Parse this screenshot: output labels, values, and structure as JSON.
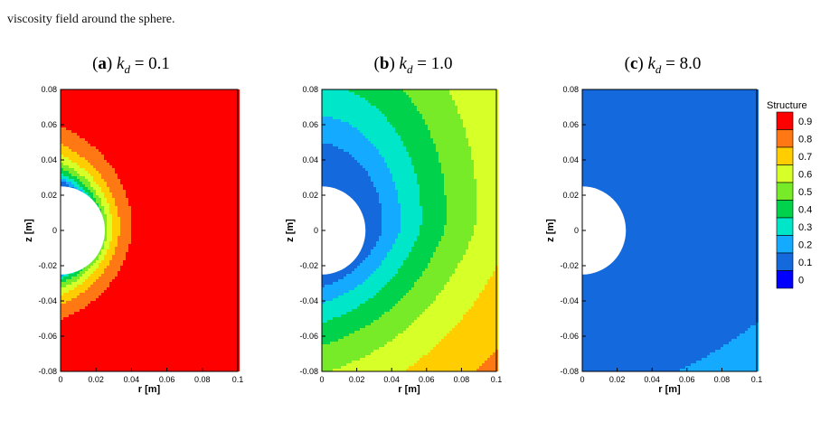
{
  "caption": {
    "line2": "viscosity field around the sphere."
  },
  "panels": [
    {
      "label": "a",
      "equation": "k_d = 0.1",
      "param_symbol": "k",
      "param_sub": "d",
      "param_value": "0.1"
    },
    {
      "label": "b",
      "equation": "k_d = 1.0",
      "param_symbol": "k",
      "param_sub": "d",
      "param_value": "1.0"
    },
    {
      "label": "c",
      "equation": "k_d = 8.0",
      "param_symbol": "k",
      "param_sub": "d",
      "param_value": "8.0"
    }
  ],
  "colors": {
    "levels": [
      "#0000ff",
      "#1469dc",
      "#14aaff",
      "#00e6c8",
      "#00d24b",
      "#78eb28",
      "#d7ff28",
      "#ffcd00",
      "#ff7814",
      "#ff0000"
    ]
  },
  "chart_data": [
    {
      "type": "heatmap",
      "title": "(a) k_d = 0.1",
      "xlabel": "r [m]",
      "ylabel": "z [m]",
      "xlim": [
        0,
        0.1
      ],
      "ylim": [
        -0.08,
        0.08
      ],
      "x_ticks": [
        "0",
        "0.02",
        "0.04",
        "0.06",
        "0.08",
        "0.1"
      ],
      "y_ticks": [
        "0.08",
        "0.06",
        "0.04",
        "0.02",
        "0",
        "-0.02",
        "-0.04",
        "-0.06",
        "-0.08"
      ],
      "sphere_radius": 0.025,
      "field_params": {
        "k": 0.1
      }
    },
    {
      "type": "heatmap",
      "title": "(b) k_d = 1.0",
      "xlabel": "r [m]",
      "ylabel": "z [m]",
      "xlim": [
        0,
        0.1
      ],
      "ylim": [
        -0.08,
        0.08
      ],
      "x_ticks": [
        "0",
        "0.02",
        "0.04",
        "0.06",
        "0.08",
        "0.1"
      ],
      "y_ticks": [
        "0.08",
        "0.06",
        "0.04",
        "0.02",
        "0",
        "-0.02",
        "-0.04",
        "-0.06",
        "-0.08"
      ],
      "sphere_radius": 0.025,
      "field_params": {
        "k": 1.0
      }
    },
    {
      "type": "heatmap",
      "title": "(c) k_d = 8.0",
      "xlabel": "r [m]",
      "ylabel": "z [m]",
      "xlim": [
        0,
        0.1
      ],
      "ylim": [
        -0.08,
        0.08
      ],
      "x_ticks": [
        "0",
        "0.02",
        "0.04",
        "0.06",
        "0.08",
        "0.1"
      ],
      "y_ticks": [
        "0.08",
        "0.06",
        "0.04",
        "0.02",
        "0",
        "-0.02",
        "-0.04",
        "-0.06",
        "-0.08"
      ],
      "sphere_radius": 0.025,
      "field_params": {
        "k": 8.0
      }
    }
  ],
  "legend": {
    "title": "Structure",
    "levels": [
      "0.9",
      "0.8",
      "0.7",
      "0.6",
      "0.5",
      "0.4",
      "0.3",
      "0.2",
      "0.1",
      "0"
    ],
    "placement": "right"
  }
}
